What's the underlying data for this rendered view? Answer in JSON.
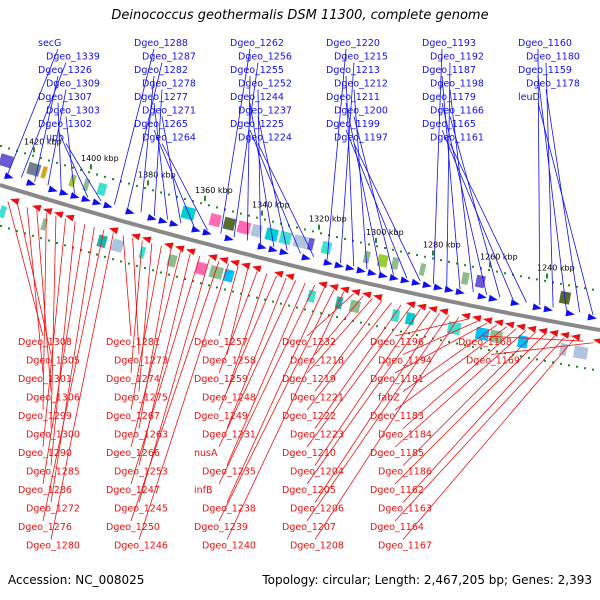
{
  "title": "Deinococcus geothermalis DSM 11300, complete genome",
  "footer": {
    "accession": "Accession: NC_008025",
    "summary": "Topology: circular; Length: 2,467,205 bp; Genes: 2,393"
  },
  "colors": {
    "forward": "#1010ee",
    "reverse": "#ee1010",
    "backbone": "#888888",
    "tick": "#228b22"
  },
  "scale": [
    "1420 kbp",
    "1400 kbp",
    "1380 kbp",
    "1360 kbp",
    "1340 kbp",
    "1320 kbp",
    "1300 kbp",
    "1280 kbp",
    "1260 kbp",
    "1240 kbp"
  ],
  "top_labels": [
    "secG",
    "Dgeo_1339",
    "Dgeo_1326",
    "Dgeo_1309",
    "Dgeo_1307",
    "Dgeo_1303",
    "Dgeo_1302",
    "upp",
    "Dgeo_1288",
    "Dgeo_1287",
    "Dgeo_1282",
    "Dgeo_1278",
    "Dgeo_1277",
    "Dgeo_1271",
    "Dgeo_1265",
    "Dgeo_1264",
    "Dgeo_1262",
    "Dgeo_1256",
    "Dgeo_1255",
    "Dgeo_1252",
    "Dgeo_1244",
    "Dgeo_1237",
    "Dgeo_1225",
    "Dgeo_1224",
    "Dgeo_1220",
    "Dgeo_1215",
    "Dgeo_1213",
    "Dgeo_1212",
    "Dgeo_1211",
    "Dgeo_1200",
    "Dgeo_1199",
    "Dgeo_1197",
    "Dgeo_1193",
    "Dgeo_1192",
    "Dgeo_1187",
    "Dgeo_1198",
    "Dgeo_1179",
    "Dgeo_1166",
    "Dgeo_1165",
    "Dgeo_1161",
    "Dgeo_1160",
    "Dgeo_1180",
    "Dgeo_1159",
    "Dgeo_1178",
    "leuD"
  ],
  "bottom_labels": [
    "Dgeo_1308",
    "Dgeo_1305",
    "Dgeo_1301",
    "Dgeo_1306",
    "Dgeo_1299",
    "Dgeo_1300",
    "Dgeo_1290",
    "Dgeo_1285",
    "Dgeo_1286",
    "Dgeo_1272",
    "Dgeo_1276",
    "Dgeo_1280",
    "Dgeo_1281",
    "Dgeo_1273",
    "Dgeo_1274",
    "Dgeo_1275",
    "Dgeo_1267",
    "Dgeo_1263",
    "Dgeo_1266",
    "Dgeo_1253",
    "Dgeo_1247",
    "Dgeo_1245",
    "Dgeo_1250",
    "Dgeo_1246",
    "Dgeo_1257",
    "Dgeo_1258",
    "Dgeo_1259",
    "Dgeo_1248",
    "Dgeo_1249",
    "Dgeo_1231",
    "nusA",
    "Dgeo_1235",
    "infB",
    "Dgeo_1238",
    "Dgeo_1239",
    "Dgeo_1240",
    "Dgeo_1232",
    "Dgeo_1218",
    "Dgeo_1219",
    "Dgeo_1221",
    "Dgeo_1222",
    "Dgeo_1223",
    "Dgeo_1210",
    "Dgeo_1204",
    "Dgeo_1205",
    "Dgeo_1206",
    "Dgeo_1207",
    "Dgeo_1208",
    "Dgeo_1196",
    "Dgeo_1194",
    "Dgeo_1181",
    "fabZ",
    "Dgeo_1183",
    "Dgeo_1184",
    "Dgeo_1185",
    "Dgeo_1186",
    "Dgeo_1162",
    "Dgeo_1163",
    "Dgeo_1164",
    "Dgeo_1167",
    "Dgeo_1168",
    "Dgeo_1169"
  ]
}
